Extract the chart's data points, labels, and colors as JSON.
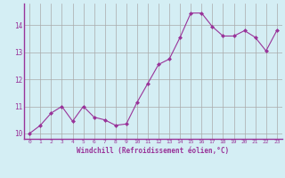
{
  "x": [
    0,
    1,
    2,
    3,
    4,
    5,
    6,
    7,
    8,
    9,
    10,
    11,
    12,
    13,
    14,
    15,
    16,
    17,
    18,
    19,
    20,
    21,
    22,
    23
  ],
  "y": [
    10.0,
    10.3,
    10.75,
    11.0,
    10.45,
    11.0,
    10.6,
    10.5,
    10.3,
    10.35,
    11.15,
    11.85,
    12.55,
    12.75,
    13.55,
    14.45,
    14.45,
    13.95,
    13.6,
    13.6,
    13.8,
    13.55,
    13.05,
    13.8
  ],
  "line_color": "#993399",
  "marker": "D",
  "marker_size": 2.0,
  "bg_color": "#d4eef4",
  "grid_color": "#aaaaaa",
  "xlabel": "Windchill (Refroidissement éolien,°C)",
  "xlabel_color": "#993399",
  "tick_color": "#993399",
  "xlim": [
    -0.5,
    23.5
  ],
  "ylim": [
    9.8,
    14.8
  ],
  "yticks": [
    10,
    11,
    12,
    13,
    14
  ],
  "xticks": [
    0,
    1,
    2,
    3,
    4,
    5,
    6,
    7,
    8,
    9,
    10,
    11,
    12,
    13,
    14,
    15,
    16,
    17,
    18,
    19,
    20,
    21,
    22,
    23
  ]
}
